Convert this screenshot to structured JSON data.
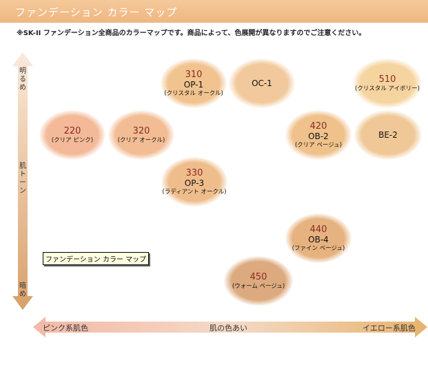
{
  "header": {
    "title": "ファンデーション カラー マップ"
  },
  "note": "※SK-II ファンデーション全商品のカラーマップです。商品によって、色展開が異なりますのでご注意ください。",
  "vertical_axis": {
    "top": "明るめ",
    "middle": "肌トーン",
    "bottom": "暗め"
  },
  "horizontal_axis": {
    "left": "ピンク系肌色",
    "middle": "肌の色あい",
    "right": "イエロー系肌色"
  },
  "tooltip": "ファンデーション カラー マップ",
  "swatches": [
    {
      "code": "310",
      "name": "OP-1",
      "desc": "(クリスタル オークル)",
      "color": "#f1c38f"
    },
    {
      "code": "",
      "name": "OC-1",
      "desc": "",
      "color": "#f2c99c"
    },
    {
      "code": "510",
      "name": "",
      "desc": "(クリスタル アイボリー)",
      "color": "#f5d49f"
    },
    {
      "code": "220",
      "name": "",
      "desc": "(クリア ピンク)",
      "color": "#f3b998"
    },
    {
      "code": "320",
      "name": "",
      "desc": "(クリア オークル)",
      "color": "#f2bd94"
    },
    {
      "code": "420",
      "name": "OB-2",
      "desc": "(クリア ベージュ)",
      "color": "#efc18b"
    },
    {
      "code": "",
      "name": "BE-2",
      "desc": "",
      "color": "#f0c897"
    },
    {
      "code": "330",
      "name": "OP-3",
      "desc": "(ラディアント オークル)",
      "color": "#efbd8c"
    },
    {
      "code": "440",
      "name": "OB-4",
      "desc": "(ファイン ベージュ)",
      "color": "#e6b27f"
    },
    {
      "code": "450",
      "name": "",
      "desc": "(ウォーム ベージュ)",
      "color": "#dcaa7e"
    }
  ]
}
